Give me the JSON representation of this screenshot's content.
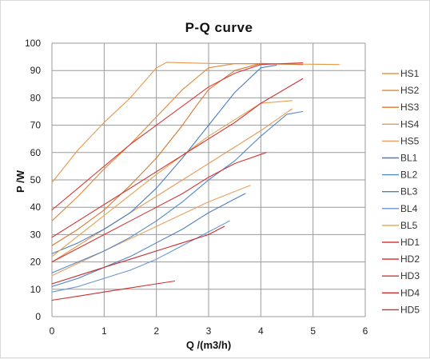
{
  "chart_data": {
    "type": "line",
    "title": "P-Q  curve",
    "xlabel": "Q /(m3/h)",
    "ylabel": "P /W",
    "xlim": [
      0,
      6
    ],
    "ylim": [
      0,
      100
    ],
    "xticks": [
      "0",
      "1",
      "2",
      "3",
      "4",
      "5",
      "6"
    ],
    "yticks": [
      "0",
      "10",
      "20",
      "30",
      "40",
      "50",
      "60",
      "70",
      "80",
      "90",
      "100"
    ],
    "grid": true,
    "legend_position": "right",
    "series": [
      {
        "name": "HS1",
        "color": "#e59a4a",
        "points": [
          [
            0,
            49
          ],
          [
            0.5,
            61
          ],
          [
            1,
            71
          ],
          [
            1.5,
            80
          ],
          [
            2,
            91
          ],
          [
            2.2,
            93
          ],
          [
            3,
            92.6
          ],
          [
            4,
            92.4
          ],
          [
            5,
            92.3
          ],
          [
            5.5,
            92.2
          ]
        ]
      },
      {
        "name": "HS2",
        "color": "#e0883a",
        "points": [
          [
            0,
            35
          ],
          [
            0.5,
            44
          ],
          [
            1,
            54
          ],
          [
            1.5,
            63
          ],
          [
            2,
            73
          ],
          [
            2.5,
            83
          ],
          [
            3,
            91
          ],
          [
            3.5,
            92.5
          ],
          [
            4,
            92.5
          ],
          [
            4.8,
            92.2
          ]
        ]
      },
      {
        "name": "HS3",
        "color": "#d87a30",
        "points": [
          [
            0,
            26
          ],
          [
            0.5,
            32
          ],
          [
            1,
            39
          ],
          [
            1.5,
            48
          ],
          [
            2,
            58
          ],
          [
            2.5,
            70
          ],
          [
            2.8,
            78
          ],
          [
            3,
            83
          ],
          [
            3.5,
            90
          ],
          [
            4,
            92.6
          ],
          [
            4.8,
            92.2
          ]
        ]
      },
      {
        "name": "HS4",
        "color": "#e89a55",
        "points": [
          [
            0,
            20
          ],
          [
            1,
            32
          ],
          [
            2,
            44
          ],
          [
            3,
            56
          ],
          [
            4,
            68
          ],
          [
            4.6,
            76
          ]
        ]
      },
      {
        "name": "HS5",
        "color": "#eaa060",
        "points": [
          [
            0,
            15
          ],
          [
            1,
            24
          ],
          [
            2,
            33
          ],
          [
            3,
            42
          ],
          [
            3.8,
            48
          ]
        ]
      },
      {
        "name": "BL1",
        "color": "#4a7ebf",
        "points": [
          [
            0,
            23
          ],
          [
            0.5,
            27
          ],
          [
            1,
            32
          ],
          [
            1.5,
            38
          ],
          [
            2,
            47
          ],
          [
            2.5,
            58
          ],
          [
            3,
            70
          ],
          [
            3.5,
            82
          ],
          [
            4,
            91
          ],
          [
            4.3,
            92
          ]
        ]
      },
      {
        "name": "BL2",
        "color": "#5588c8",
        "points": [
          [
            0,
            16
          ],
          [
            0.5,
            20
          ],
          [
            1,
            24
          ],
          [
            1.5,
            29
          ],
          [
            2,
            35
          ],
          [
            2.5,
            42
          ],
          [
            3,
            50
          ],
          [
            3.5,
            57
          ],
          [
            4,
            66
          ],
          [
            4.5,
            74
          ],
          [
            4.8,
            75
          ]
        ]
      },
      {
        "name": "BL3",
        "color": "#4f7fbe",
        "points": [
          [
            0,
            11
          ],
          [
            0.5,
            14
          ],
          [
            1,
            18
          ],
          [
            1.5,
            22
          ],
          [
            2,
            27
          ],
          [
            2.5,
            32
          ],
          [
            3,
            38
          ],
          [
            3.5,
            43
          ],
          [
            3.7,
            45
          ]
        ]
      },
      {
        "name": "BL4",
        "color": "#6a95cf",
        "points": [
          [
            0,
            9
          ],
          [
            0.5,
            11
          ],
          [
            1,
            14
          ],
          [
            1.5,
            17
          ],
          [
            2,
            21
          ],
          [
            2.5,
            26
          ],
          [
            3,
            31
          ],
          [
            3.4,
            35
          ]
        ]
      },
      {
        "name": "BL5",
        "color": "#e7a04d",
        "points": [
          [
            0,
            22
          ],
          [
            1,
            37
          ],
          [
            2,
            52
          ],
          [
            3,
            66
          ],
          [
            4,
            78
          ],
          [
            4.6,
            79
          ]
        ]
      },
      {
        "name": "HD1",
        "color": "#d93a3a",
        "points": [
          [
            0,
            39
          ],
          [
            0.5,
            47
          ],
          [
            1,
            55
          ],
          [
            1.5,
            63
          ],
          [
            2,
            70
          ],
          [
            2.5,
            77
          ],
          [
            3,
            84
          ],
          [
            3.5,
            89
          ],
          [
            4,
            92.2
          ],
          [
            4.8,
            92.8
          ]
        ]
      },
      {
        "name": "HD2",
        "color": "#cf2f2f",
        "points": [
          [
            0,
            29
          ],
          [
            0.5,
            35
          ],
          [
            1,
            41
          ],
          [
            1.5,
            47
          ],
          [
            2,
            53
          ],
          [
            2.5,
            59
          ],
          [
            3,
            65
          ],
          [
            3.5,
            71
          ],
          [
            4,
            78
          ],
          [
            4.8,
            87
          ]
        ]
      },
      {
        "name": "HD3",
        "color": "#d43535",
        "points": [
          [
            0,
            20
          ],
          [
            0.5,
            25
          ],
          [
            1,
            30
          ],
          [
            1.5,
            35
          ],
          [
            2,
            40
          ],
          [
            2.5,
            45
          ],
          [
            3,
            51
          ],
          [
            3.5,
            56
          ],
          [
            4.1,
            60
          ]
        ]
      },
      {
        "name": "HD4",
        "color": "#c92c2c",
        "points": [
          [
            0,
            12
          ],
          [
            0.5,
            15
          ],
          [
            1,
            18
          ],
          [
            1.5,
            21
          ],
          [
            2,
            24
          ],
          [
            2.5,
            27
          ],
          [
            3,
            30
          ],
          [
            3.3,
            33
          ]
        ]
      },
      {
        "name": "HD5",
        "color": "#d02e2e",
        "points": [
          [
            0,
            6
          ],
          [
            0.5,
            7.5
          ],
          [
            1,
            9
          ],
          [
            1.5,
            10.5
          ],
          [
            2,
            12
          ],
          [
            2.35,
            13
          ]
        ]
      }
    ]
  }
}
